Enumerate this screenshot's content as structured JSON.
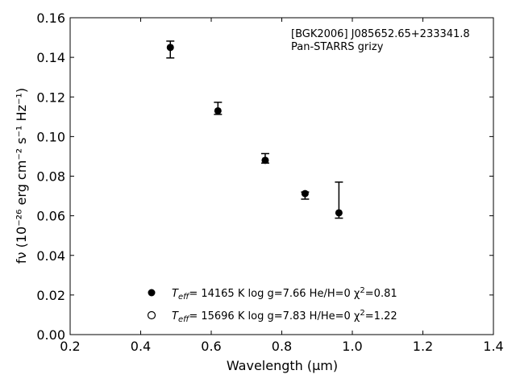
{
  "chart_data": {
    "type": "scatter",
    "annotation_lines": [
      "[BGK2006] J085652.65+233341.8",
      "Pan-STARRS grizy"
    ],
    "xlabel": "Wavelength (μm)",
    "ylabel": "fν (10⁻²⁶ erg cm⁻² s⁻¹ Hz⁻¹)",
    "xlim": [
      0.2,
      1.4
    ],
    "ylim": [
      0.0,
      0.16
    ],
    "x_ticks": [
      "0.2",
      "0.4",
      "0.6",
      "0.8",
      "1.0",
      "1.2",
      "1.4"
    ],
    "y_ticks": [
      "0.00",
      "0.02",
      "0.04",
      "0.06",
      "0.08",
      "0.10",
      "0.12",
      "0.14",
      "0.16"
    ],
    "grid": false,
    "legend_position": "lower-center",
    "series": [
      {
        "marker": "filled-circle",
        "points": [
          {
            "x": 0.484,
            "y": 0.145,
            "err_low": 0.0053,
            "err_high": 0.0032
          },
          {
            "x": 0.619,
            "y": 0.113,
            "err_low": 0.0018,
            "err_high": 0.0043
          },
          {
            "x": 0.753,
            "y": 0.088,
            "err_low": 0.0014,
            "err_high": 0.0034
          },
          {
            "x": 0.866,
            "y": 0.0712,
            "err_low": 0.0028,
            "err_high": 0.0008
          },
          {
            "x": 0.962,
            "y": 0.0615,
            "err_low": 0.0027,
            "err_high": 0.0155
          }
        ]
      }
    ],
    "legend": [
      {
        "marker": "filled-circle",
        "teff_label": "T",
        "teff_sub": "eff",
        "text": "= 14165 K  log g=7.66  He/H=0  χ",
        "sup": "2",
        "tail": "=0.81"
      },
      {
        "marker": "open-circle",
        "teff_label": "T",
        "teff_sub": "eff",
        "text": "= 15696 K  log g=7.83  H/He=0  χ",
        "sup": "2",
        "tail": "=1.22"
      }
    ]
  }
}
